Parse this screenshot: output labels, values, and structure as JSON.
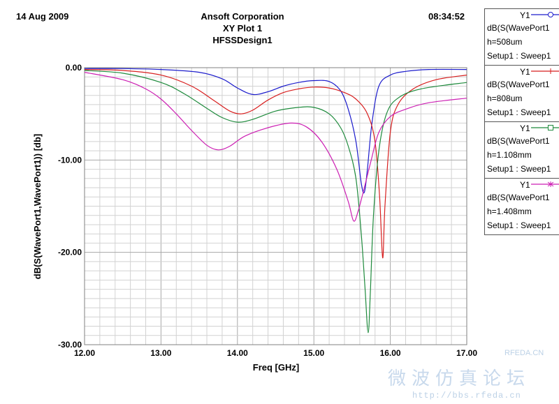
{
  "header": {
    "date": "14 Aug 2009",
    "time": "08:34:52",
    "company": "Ansoft Corporation",
    "plot_name": "XY Plot 1",
    "design": "HFSSDesign1"
  },
  "legend": [
    {
      "y": "Y1",
      "line1": "dB(S(WavePort1",
      "line2": "h=508um",
      "line3": "Setup1 : Sweep1",
      "color": "#1c1ccc",
      "marker": "circle"
    },
    {
      "y": "Y1",
      "line1": "dB(S(WavePort1",
      "line2": "h=808um",
      "line3": "Setup1 : Sweep1",
      "color": "#d81f1f",
      "marker": "plus"
    },
    {
      "y": "Y1",
      "line1": "dB(S(WavePort1",
      "line2": "h=1.108mm",
      "line3": "Setup1 : Sweep1",
      "color": "#1e8a3c",
      "marker": "square"
    },
    {
      "y": "Y1",
      "line1": "dB(S(WavePort1",
      "line2": "h=1.408mm",
      "line3": "Setup1 : Sweep1",
      "color": "#cc1fb3",
      "marker": "star"
    }
  ],
  "watermark": {
    "brand": "RFEDA.CN",
    "chinese": "微波仿真论坛",
    "url": "http://bbs.rfeda.cn"
  },
  "chart_data": {
    "type": "line",
    "xlabel": "Freq [GHz]",
    "ylabel": "dB(S(WavePort1,WavePort1)) [db]",
    "xlim": [
      12.0,
      17.0
    ],
    "ylim": [
      -30.0,
      0.0
    ],
    "x_ticks": [
      "12.00",
      "13.00",
      "14.00",
      "15.00",
      "16.00",
      "17.00"
    ],
    "y_ticks": [
      "0.00",
      "-10.00",
      "-20.00",
      "-30.00"
    ],
    "grid": true,
    "series": [
      {
        "name": "h=508um",
        "color": "#1c1ccc",
        "x": [
          12.0,
          12.5,
          13.0,
          13.5,
          13.8,
          14.0,
          14.2,
          14.4,
          14.6,
          14.8,
          15.0,
          15.2,
          15.35,
          15.45,
          15.55,
          15.62,
          15.66,
          15.7,
          15.76,
          15.85,
          16.0,
          16.2,
          16.5,
          17.0
        ],
        "y": [
          -0.1,
          -0.1,
          -0.2,
          -0.5,
          -1.2,
          -2.2,
          -2.9,
          -2.6,
          -2.0,
          -1.6,
          -1.4,
          -1.5,
          -2.5,
          -4.5,
          -8.0,
          -12.5,
          -13.5,
          -11.0,
          -6.0,
          -2.0,
          -0.8,
          -0.4,
          -0.2,
          -0.2
        ]
      },
      {
        "name": "h=808um",
        "color": "#d81f1f",
        "x": [
          12.0,
          12.5,
          13.0,
          13.4,
          13.7,
          13.9,
          14.05,
          14.2,
          14.4,
          14.6,
          14.8,
          15.0,
          15.2,
          15.4,
          15.55,
          15.7,
          15.8,
          15.86,
          15.9,
          15.93,
          16.0,
          16.1,
          16.3,
          16.6,
          17.0
        ],
        "y": [
          -0.2,
          -0.3,
          -0.8,
          -2.0,
          -3.6,
          -4.7,
          -5.0,
          -4.6,
          -3.5,
          -2.7,
          -2.3,
          -2.1,
          -2.2,
          -2.7,
          -3.4,
          -5.0,
          -8.0,
          -14.0,
          -20.6,
          -15.0,
          -7.0,
          -4.0,
          -2.3,
          -1.3,
          -0.8
        ]
      },
      {
        "name": "h=1.108mm",
        "color": "#1e8a3c",
        "x": [
          12.0,
          12.5,
          13.0,
          13.3,
          13.6,
          13.8,
          14.0,
          14.2,
          14.5,
          14.8,
          15.0,
          15.2,
          15.35,
          15.45,
          15.55,
          15.62,
          15.67,
          15.71,
          15.74,
          15.78,
          15.85,
          15.95,
          16.1,
          16.4,
          17.0
        ],
        "y": [
          -0.3,
          -0.6,
          -1.6,
          -2.8,
          -4.4,
          -5.4,
          -5.9,
          -5.6,
          -4.7,
          -4.3,
          -4.3,
          -5.0,
          -6.5,
          -8.5,
          -12.0,
          -18.0,
          -24.0,
          -28.7,
          -24.0,
          -16.0,
          -9.0,
          -5.0,
          -3.3,
          -2.3,
          -1.6
        ]
      },
      {
        "name": "h=1.408mm",
        "color": "#cc1fb3",
        "x": [
          12.0,
          12.5,
          12.8,
          13.0,
          13.2,
          13.4,
          13.6,
          13.75,
          13.9,
          14.1,
          14.4,
          14.7,
          14.9,
          15.1,
          15.3,
          15.45,
          15.52,
          15.58,
          15.66,
          15.75,
          15.85,
          16.0,
          16.2,
          16.5,
          17.0
        ],
        "y": [
          -0.5,
          -1.3,
          -2.3,
          -3.4,
          -5.0,
          -6.8,
          -8.4,
          -8.9,
          -8.5,
          -7.4,
          -6.5,
          -6.0,
          -6.4,
          -8.0,
          -11.0,
          -14.5,
          -16.6,
          -15.5,
          -13.0,
          -10.0,
          -7.0,
          -5.3,
          -4.5,
          -3.8,
          -3.3
        ]
      }
    ]
  }
}
